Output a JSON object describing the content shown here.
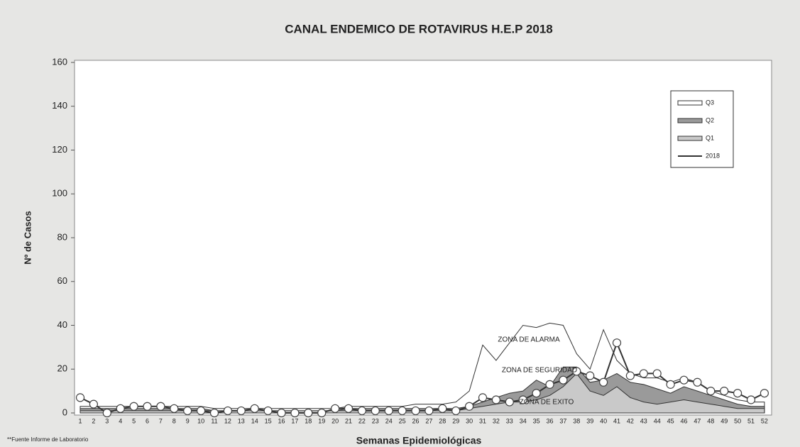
{
  "chart_data": {
    "type": "line",
    "title": "CANAL ENDEMICO DE ROTAVIRUS H.E.P 2018",
    "x_label": "Semanas Epidemiológicas",
    "y_label": "Nº de Casos",
    "footnote": "**Fuente Informe de Laboratorio",
    "annotations": [
      "ZONA DE ALARMA",
      "ZONA DE SEGURIDAD",
      "ZONA DE EXITO"
    ],
    "categories": [
      "1",
      "2",
      "3",
      "4",
      "5",
      "6",
      "7",
      "8",
      "9",
      "10",
      "11",
      "12",
      "13",
      "14",
      "15",
      "16",
      "17",
      "18",
      "19",
      "20",
      "21",
      "22",
      "23",
      "24",
      "25",
      "26",
      "27",
      "28",
      "29",
      "30",
      "31",
      "32",
      "33",
      "34",
      "35",
      "36",
      "37",
      "38",
      "39",
      "40",
      "41",
      "42",
      "43",
      "44",
      "45",
      "46",
      "47",
      "48",
      "49",
      "50",
      "51",
      "52"
    ],
    "ylim": [
      0,
      160
    ],
    "yticks": [
      0,
      20,
      40,
      60,
      80,
      100,
      120,
      140,
      160
    ],
    "legend": "top-right",
    "series": [
      {
        "name": "Q3",
        "style": "area",
        "color": "#ffffff",
        "values": [
          3,
          3,
          3,
          3,
          3,
          3,
          3,
          3,
          3,
          3,
          2,
          2,
          2,
          2,
          2,
          2,
          2,
          2,
          2,
          2,
          3,
          3,
          3,
          3,
          3,
          4,
          4,
          4,
          5,
          10,
          31,
          24,
          32,
          40,
          39,
          41,
          40,
          27,
          20,
          38,
          24,
          18,
          16,
          16,
          14,
          16,
          14,
          10,
          8,
          6,
          5,
          5
        ]
      },
      {
        "name": "Q2",
        "style": "area",
        "color": "#9a9a9a",
        "values": [
          2,
          2,
          2,
          2,
          2,
          2,
          2,
          2,
          2,
          2,
          1,
          1,
          1,
          1,
          1,
          1,
          1,
          1,
          1,
          1,
          2,
          2,
          2,
          2,
          2,
          2,
          2,
          2,
          2,
          3,
          5,
          7,
          9,
          10,
          15,
          12,
          21,
          21,
          14,
          15,
          18,
          14,
          13,
          11,
          9,
          12,
          10,
          8,
          6,
          4,
          3,
          3
        ]
      },
      {
        "name": "Q1",
        "style": "area",
        "color": "#c9c9c9",
        "values": [
          1,
          1,
          1,
          1,
          1,
          1,
          1,
          1,
          1,
          1,
          1,
          1,
          1,
          1,
          1,
          1,
          1,
          1,
          1,
          1,
          1,
          1,
          1,
          1,
          1,
          1,
          1,
          1,
          1,
          2,
          3,
          4,
          5,
          5,
          6,
          8,
          12,
          18,
          10,
          8,
          12,
          7,
          5,
          4,
          5,
          6,
          5,
          4,
          3,
          2,
          2,
          2
        ]
      },
      {
        "name": "2018",
        "style": "line",
        "color": "#333333",
        "values": [
          7,
          4,
          0,
          2,
          3,
          3,
          3,
          2,
          1,
          1,
          0,
          1,
          1,
          2,
          1,
          0,
          0,
          0,
          0,
          2,
          2,
          1,
          1,
          1,
          1,
          1,
          1,
          2,
          1,
          3,
          7,
          6,
          5,
          6,
          9,
          13,
          15,
          19,
          17,
          14,
          32,
          17,
          18,
          18,
          13,
          15,
          14,
          10,
          10,
          9,
          6,
          9
        ]
      }
    ]
  }
}
